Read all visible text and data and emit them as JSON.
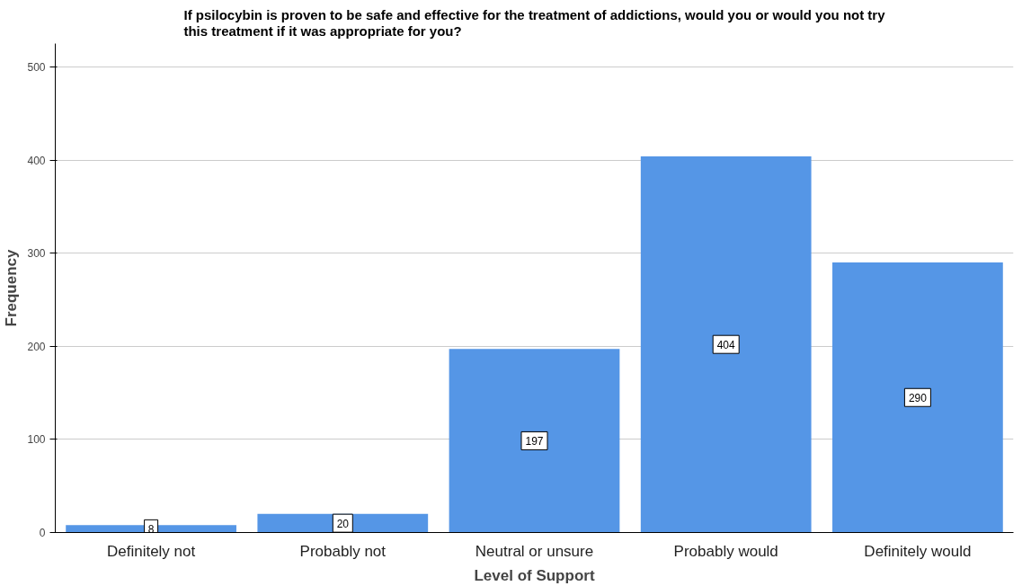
{
  "chart_data": {
    "type": "bar",
    "title": "If psilocybin is proven to be safe and effective for the treatment of addictions, would you or would you not try this treatment if it was appropriate for you?",
    "xlabel": "Level of Support",
    "ylabel": "Frequency",
    "categories": [
      "Definitely not",
      "Probably not",
      "Neutral or unsure",
      "Probably would",
      "Definitely would"
    ],
    "values": [
      8,
      20,
      197,
      404,
      290
    ],
    "color": "#5596e6",
    "ylim": [
      0,
      525
    ],
    "yticks": [
      0,
      100,
      200,
      300,
      400,
      500
    ],
    "grid": "y",
    "data_labels": true
  }
}
